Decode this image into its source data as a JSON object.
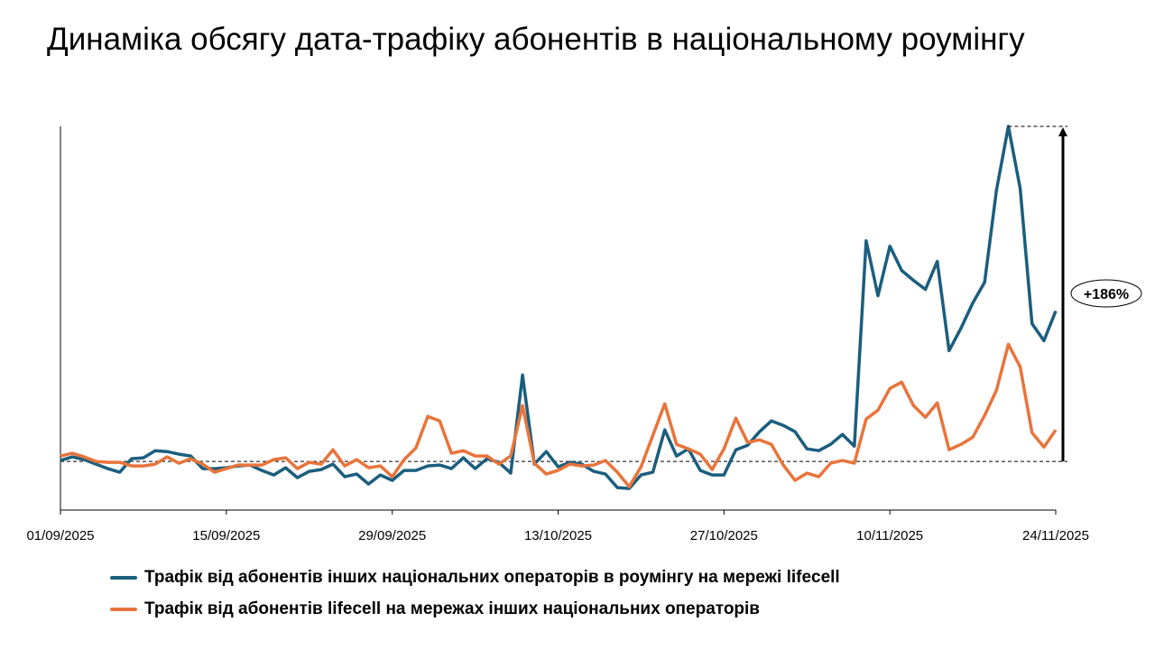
{
  "title": "Динаміка обсягу дата-трафіку абонентів в національному роумінгу",
  "chart_data": {
    "type": "line",
    "title": "Динаміка обсягу дата-трафіку абонентів в національному роумінгу",
    "x_start": "01/09/2025",
    "x_end": "24/11/2025",
    "x_ticks": [
      "01/09/2025",
      "15/09/2025",
      "29/09/2025",
      "13/10/2025",
      "27/10/2025",
      "10/11/2025",
      "24/11/2025"
    ],
    "ylim": [
      73,
      286
    ],
    "baseline": 100,
    "grid": false,
    "legend_placement": "bottom",
    "annotation": {
      "label": "+186%",
      "from": 100,
      "to": 286
    },
    "series": [
      {
        "name": "Трафік від абонентів інших національних операторів в роумінгу на мережі lifecell",
        "color": "#1b5e7e",
        "values": [
          100.5,
          102.5,
          101,
          98.5,
          96,
          94,
          101.5,
          102,
          106,
          105.5,
          104,
          103,
          96,
          96,
          96.5,
          97.5,
          98,
          95,
          92.5,
          96.5,
          91,
          94.5,
          95.5,
          98.5,
          91.5,
          93,
          87.5,
          92.5,
          89.5,
          95,
          95,
          97.5,
          98,
          96,
          102,
          96,
          101.5,
          99.5,
          93.5,
          148,
          98.5,
          105.5,
          97,
          99.5,
          98.5,
          94.5,
          93,
          85.5,
          85,
          92.5,
          94,
          117.5,
          103,
          107,
          95,
          92.5,
          92.5,
          106.5,
          109,
          116.5,
          122.5,
          120,
          116.5,
          107,
          106,
          109.5,
          115,
          108.5,
          222.5,
          192,
          219.5,
          206,
          200.5,
          195.5,
          211,
          161.5,
          174,
          188,
          199.5,
          250.5,
          286,
          251.5,
          176.5,
          167,
          183.5
        ]
      },
      {
        "name": "Трафік від абонентів lifecell на мережах інших національних операторів",
        "color": "#e8743b",
        "values": [
          103,
          104.5,
          102.5,
          100,
          99.5,
          99.5,
          97.5,
          97.5,
          98.5,
          102.5,
          99,
          101.5,
          98.5,
          94,
          96,
          98,
          98,
          98,
          101,
          102,
          96,
          99.5,
          98.5,
          106.5,
          97.5,
          101,
          96.5,
          97.5,
          91.5,
          101,
          107.5,
          125,
          122.5,
          104.5,
          106,
          103,
          103,
          98.5,
          103,
          131,
          99,
          93,
          95,
          98.5,
          97.5,
          98,
          100.5,
          94,
          86,
          97,
          114.5,
          132,
          109.5,
          107,
          104,
          95.5,
          107,
          124,
          110.5,
          112,
          109.5,
          98,
          89.5,
          93.5,
          91.5,
          99,
          100.5,
          99,
          123.5,
          128.5,
          140.5,
          144,
          131,
          124.5,
          132.5,
          106.5,
          109.5,
          113.5,
          125.5,
          139.5,
          165,
          152.5,
          116,
          108,
          117.5
        ]
      }
    ]
  }
}
